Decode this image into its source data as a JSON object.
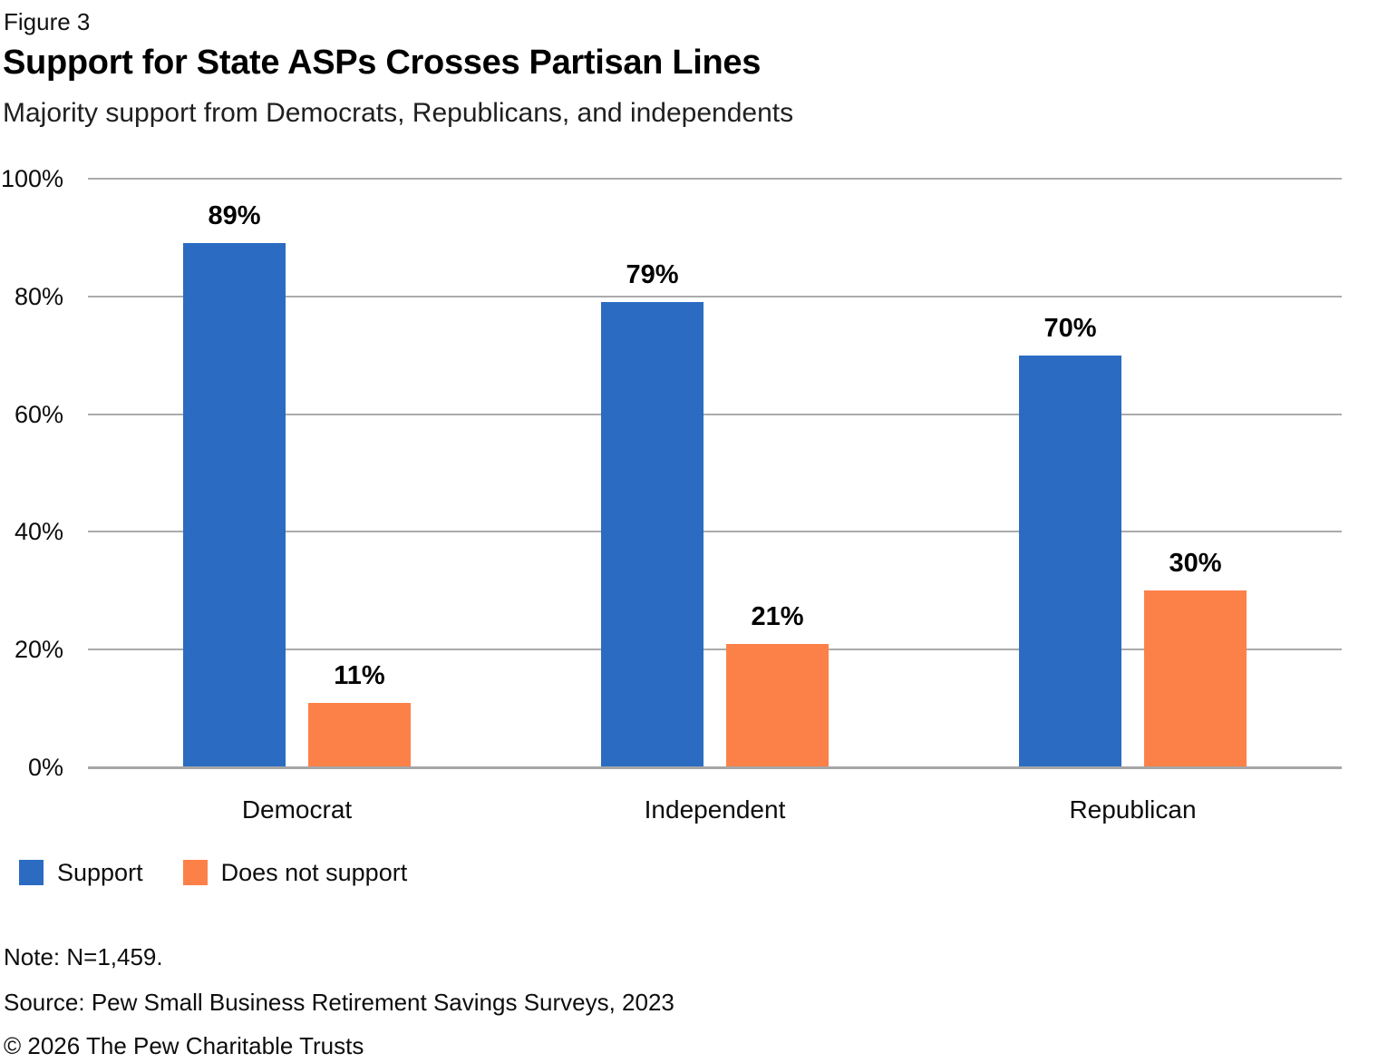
{
  "figure_label": "Figure 3",
  "title": "Support for State ASPs Crosses Partisan Lines",
  "subtitle": "Majority support from Democrats, Republicans, and independents",
  "notes": {
    "note": "Note: N=1,459.",
    "source": "Source: Pew Small Business Retirement Savings Surveys, 2023",
    "copyright": "© 2026 The Pew Charitable Trusts"
  },
  "colors": {
    "support": "#2b6cc2",
    "does_not_support": "#fc8149",
    "gridline": "#ababab",
    "axis_line": "#a6a6a6",
    "text": "#000000"
  },
  "chart_data": {
    "type": "bar",
    "categories": [
      "Democrat",
      "Independent",
      "Republican"
    ],
    "series": [
      {
        "name": "Support",
        "color": "#2b6cc2",
        "values": [
          89,
          79,
          70
        ]
      },
      {
        "name": "Does not support",
        "color": "#fc8149",
        "values": [
          11,
          21,
          30
        ]
      }
    ],
    "value_suffix": "%",
    "data_labels": [
      "89%",
      "11%",
      "79%",
      "21%",
      "70%",
      "30%"
    ],
    "xlabel": "",
    "ylabel": "",
    "ylim": [
      0,
      100
    ],
    "yticks": [
      0,
      20,
      40,
      60,
      80,
      100
    ],
    "ytick_labels": [
      "0%",
      "20%",
      "40%",
      "60%",
      "80%",
      "100%"
    ],
    "grid": true,
    "legend_position": "bottom-left"
  }
}
